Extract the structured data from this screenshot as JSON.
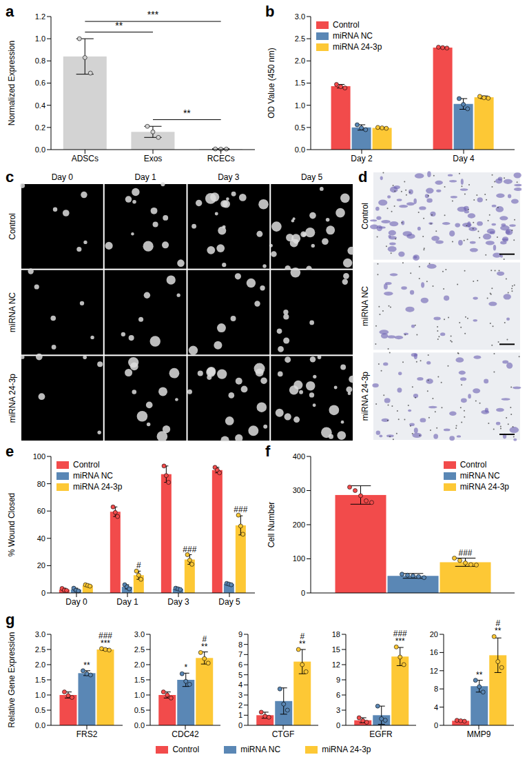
{
  "chart_data": [
    {
      "panel": "a",
      "type": "bar",
      "categories": [
        "ADSCs",
        "Exos",
        "RCECs"
      ],
      "values": [
        0.84,
        0.16,
        0.005
      ],
      "errors": [
        0.16,
        0.05,
        0.003
      ],
      "points": [
        [
          1.0,
          0.83,
          0.69
        ],
        [
          0.21,
          0.16,
          0.11
        ],
        [
          0.006,
          0.004,
          0.005
        ]
      ],
      "color": "#d3d3d3",
      "ylabel": "Normalized Expression",
      "ylim": [
        0,
        1.2
      ],
      "yticks": [
        {
          "value": 0,
          "label": "0.0"
        },
        0.2,
        0.4,
        0.6,
        0.8,
        {
          "value": 1,
          "label": "1.0"
        },
        1.2
      ],
      "comparisons": [
        {
          "from": "ADSCs",
          "to": "Exos",
          "label": "**"
        },
        {
          "from": "Exos",
          "to": "RCECs",
          "label": "**"
        },
        {
          "from": "ADSCs",
          "to": "RCECs",
          "label": "***"
        }
      ]
    },
    {
      "panel": "b",
      "type": "bar",
      "categories": [
        "Day 2",
        "Day 4"
      ],
      "series": [
        {
          "name": "Control",
          "color": "#f24b4b",
          "values": [
            1.43,
            2.3
          ],
          "errors": [
            0.04,
            0.01
          ],
          "points": [
            [
              1.47,
              1.42,
              1.39
            ],
            [
              2.31,
              2.3,
              2.29
            ]
          ]
        },
        {
          "name": "miRNA NC",
          "color": "#5a87b5",
          "values": [
            0.5,
            1.03
          ],
          "errors": [
            0.06,
            0.12
          ],
          "points": [
            [
              0.56,
              0.49,
              0.45
            ],
            [
              1.15,
              1.02,
              0.92
            ]
          ]
        },
        {
          "name": "miRNA 24-3p",
          "color": "#fdc835",
          "values": [
            0.49,
            1.18
          ],
          "errors": [
            0.01,
            0.03
          ],
          "points": [
            [
              0.5,
              0.49,
              0.48
            ],
            [
              1.2,
              1.17,
              1.16
            ]
          ]
        }
      ],
      "ylabel": "OD Value (450 nm)",
      "ylim": [
        0,
        3
      ],
      "yticks": [
        {
          "value": 0,
          "label": "0.0"
        },
        0.5,
        {
          "value": 1,
          "label": "1.0"
        },
        1.5,
        {
          "value": 2,
          "label": "2.0"
        },
        2.5,
        {
          "value": 3,
          "label": "3.0"
        }
      ],
      "legend": "top-left"
    },
    {
      "panel": "e",
      "type": "bar",
      "categories": [
        "Day 0",
        "Day 1",
        "Day 3",
        "Day 5"
      ],
      "series": [
        {
          "name": "Control",
          "color": "#f24b4b",
          "values": [
            2.5,
            59.5,
            87,
            90
          ],
          "errors": [
            1,
            3.5,
            6,
            2
          ],
          "points": [
            [
              3.3,
              2,
              1.8
            ],
            [
              63,
              59,
              56
            ],
            [
              93,
              86,
              81
            ],
            [
              92,
              90,
              88
            ]
          ]
        },
        {
          "name": "miRNA NC",
          "color": "#5a87b5",
          "values": [
            2.5,
            4.5,
            3,
            6.5
          ],
          "errors": [
            1,
            1.5,
            0.5,
            0.5
          ],
          "points": [
            [
              3.5,
              2,
              1.5
            ],
            [
              6,
              4.5,
              3
            ],
            [
              3.5,
              3,
              2.5
            ],
            [
              7,
              6.5,
              6
            ]
          ]
        },
        {
          "name": "miRNA 24-3p",
          "color": "#fdc835",
          "values": [
            5.5,
            13,
            24.5,
            49.5
          ],
          "errors": [
            0.5,
            3,
            3.5,
            7
          ],
          "points": [
            [
              6,
              5.5,
              5
            ],
            [
              16,
              13,
              10
            ],
            [
              28,
              24,
              21
            ],
            [
              57,
              49,
              43
            ]
          ],
          "annotations": [
            null,
            [
              "#"
            ],
            [
              "###"
            ],
            [
              "###"
            ]
          ]
        }
      ],
      "ylabel": "% Wound Closed",
      "ylim": [
        0,
        100
      ],
      "yticks": [
        0,
        20,
        40,
        60,
        80,
        100
      ],
      "legend": "top-left"
    },
    {
      "panel": "f",
      "type": "bar",
      "categories": [
        null
      ],
      "series": [
        {
          "name": "Control",
          "color": "#f24b4b",
          "values": [
            287
          ],
          "errors": [
            27
          ],
          "points": [
            [
              310,
              300,
              285,
              270,
              265
            ]
          ]
        },
        {
          "name": "miRNA NC",
          "color": "#5a87b5",
          "values": [
            50
          ],
          "errors": [
            7
          ],
          "points": [
            [
              55,
              52,
              50,
              48,
              45
            ]
          ]
        },
        {
          "name": "miRNA 24-3p",
          "color": "#fdc835",
          "values": [
            90
          ],
          "errors": [
            12
          ],
          "points": [
            [
              102,
              95,
              88,
              83,
              82
            ]
          ],
          "annotations": [
            [
              "###"
            ]
          ]
        }
      ],
      "ylabel": "Cell Number",
      "ylim": [
        0,
        400
      ],
      "yticks": [
        0,
        100,
        200,
        300,
        400
      ],
      "legend": "top-right",
      "tick_labels": "y"
    },
    {
      "panel": "g",
      "type": "bar",
      "ylabel": "Relative Gene Expression",
      "legend": "bottom",
      "series": [
        {
          "name": "Control",
          "color": "#f24b4b"
        },
        {
          "name": "miRNA NC",
          "color": "#5a87b5"
        },
        {
          "name": "miRNA 24-3p",
          "color": "#fdc835"
        }
      ],
      "subplots": [
        {
          "categories": [
            "FRS2"
          ],
          "values": [
            1.0,
            1.72,
            2.5
          ],
          "errors": [
            0.1,
            0.08,
            0.03
          ],
          "points": [
            [
              1.1,
              0.98,
              0.92
            ],
            [
              1.8,
              1.7,
              1.66
            ],
            [
              2.53,
              2.5,
              2.48
            ]
          ],
          "annotations": [
            null,
            [
              "**"
            ],
            [
              "###",
              "***"
            ]
          ],
          "ylim": [
            0,
            3
          ],
          "yticks": [
            {
              "value": 0,
              "label": "0.0"
            },
            0.5,
            {
              "value": 1,
              "label": "1.0"
            },
            1.5,
            {
              "value": 2,
              "label": "2.0"
            },
            2.5,
            {
              "value": 3,
              "label": "3.0"
            }
          ]
        },
        {
          "categories": [
            "CDC42"
          ],
          "values": [
            1.0,
            1.5,
            2.22
          ],
          "errors": [
            0.1,
            0.22,
            0.2
          ],
          "points": [
            [
              1.1,
              1.0,
              0.9
            ],
            [
              1.7,
              1.45,
              1.35
            ],
            [
              2.4,
              2.2,
              2.05
            ]
          ],
          "annotations": [
            null,
            [
              "*"
            ],
            [
              "#",
              "**"
            ]
          ],
          "ylim": [
            0,
            3
          ],
          "yticks": [
            {
              "value": 0,
              "label": "0.0"
            },
            0.5,
            {
              "value": 1,
              "label": "1.0"
            },
            1.5,
            {
              "value": 2,
              "label": "2.0"
            },
            2.5,
            {
              "value": 3,
              "label": "3.0"
            }
          ]
        },
        {
          "categories": [
            "CTGF"
          ],
          "values": [
            1.0,
            2.4,
            6.3
          ],
          "errors": [
            0.3,
            1.3,
            1.2
          ],
          "points": [
            [
              1.3,
              0.9,
              0.8
            ],
            [
              3.6,
              2.1,
              1.5
            ],
            [
              7.5,
              6.0,
              5.3
            ]
          ],
          "annotations": [
            null,
            null,
            [
              "#",
              "**"
            ]
          ],
          "ylim": [
            0,
            9
          ],
          "yticks": [
            0,
            1,
            2,
            3,
            4,
            5,
            6,
            7,
            8,
            9
          ]
        },
        {
          "categories": [
            "EGFR"
          ],
          "values": [
            1.0,
            2.0,
            13.6
          ],
          "errors": [
            0.5,
            1.8,
            1.8
          ],
          "points": [
            [
              1.5,
              0.9,
              0.6
            ],
            [
              3.8,
              1.3,
              1.0
            ],
            [
              15.5,
              13.5,
              12.0
            ]
          ],
          "annotations": [
            null,
            null,
            [
              "###",
              "***"
            ]
          ],
          "ylim": [
            0,
            18
          ],
          "yticks": [
            0,
            3,
            6,
            9,
            12,
            15,
            18
          ]
        },
        {
          "categories": [
            "MMP9"
          ],
          "values": [
            1.0,
            8.6,
            15.4
          ],
          "errors": [
            0.15,
            1.3,
            3.8
          ],
          "points": [
            [
              1.1,
              1.0,
              0.9
            ],
            [
              9.9,
              8.5,
              7.3
            ],
            [
              19.5,
              14,
              12.7
            ]
          ],
          "annotations": [
            null,
            [
              "**"
            ],
            [
              "#",
              "**"
            ]
          ],
          "ylim": [
            0,
            20
          ],
          "yticks": [
            0,
            4,
            8,
            12,
            16,
            20
          ]
        }
      ]
    }
  ],
  "image_panels": [
    {
      "panel": "c",
      "columns": [
        "Day 0",
        "Day 1",
        "Day 3",
        "Day 5"
      ],
      "rows": [
        "Control",
        "miRNA NC",
        "miRNA 24-3p"
      ]
    },
    {
      "panel": "d",
      "rows": [
        "Control",
        "miRNA NC",
        "miRNA 24-3p"
      ]
    }
  ]
}
